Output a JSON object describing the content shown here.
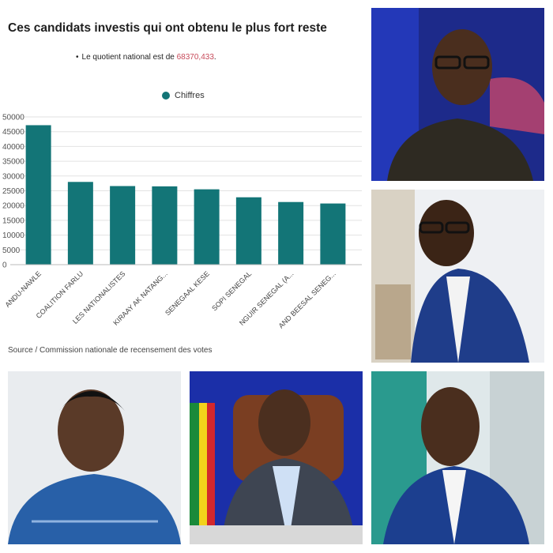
{
  "chart_data": {
    "type": "bar",
    "title": "Ces candidats investis qui ont obtenu le plus fort reste",
    "note_prefix": "Le quotient national est de",
    "note_value": "68370,433",
    "note_suffix": ".",
    "legend": "Chiffres",
    "source": "Source / Commission nationale de recensement des votes",
    "series_color": "#137577",
    "categories": [
      "ANDU-NAWLE",
      "COALITION FARLU",
      "LES NATIONALISTES",
      "KIRAAY AK NATANG...",
      "SENEGAAL KESE",
      "SOPI SENEGAL",
      "NGUIR SENEGAL (A...",
      "AND BEESAL SENEG..."
    ],
    "values": [
      47200,
      28000,
      26600,
      26500,
      25500,
      22800,
      21200,
      20700
    ],
    "y_ticks": [
      "50000",
      "45000",
      "40000",
      "35000",
      "30000",
      "25000",
      "20000",
      "15000",
      "10000",
      "5000",
      "0"
    ],
    "ylim": [
      0,
      50000
    ],
    "grid": true,
    "legend_position": "top"
  },
  "photos": [
    {
      "name": "photo-man-glasses-dark-tunic"
    },
    {
      "name": "photo-man-glasses-blue-suit"
    },
    {
      "name": "photo-young-man-blue-tunic"
    },
    {
      "name": "photo-man-office-flag"
    },
    {
      "name": "photo-man-blue-suit-smiling"
    }
  ]
}
